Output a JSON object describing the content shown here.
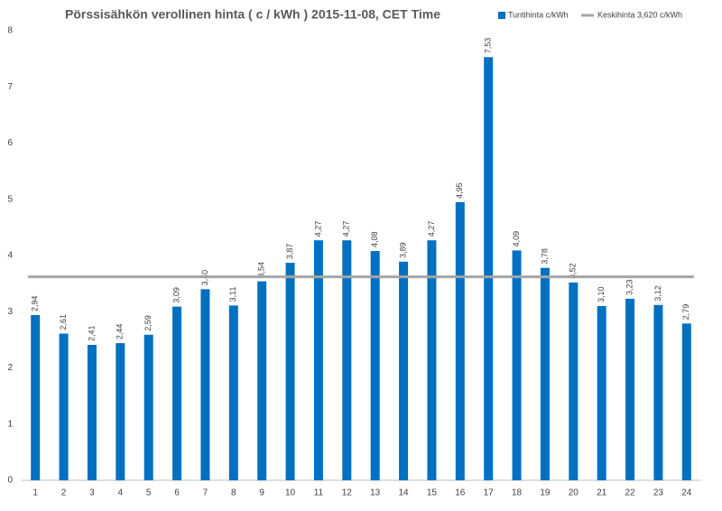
{
  "chart_data": {
    "type": "bar",
    "title": "Pörssisähkön verollinen hinta ( c / kWh ) 2015-11-08, CET Time",
    "categories": [
      "1",
      "2",
      "3",
      "4",
      "5",
      "6",
      "7",
      "8",
      "9",
      "10",
      "11",
      "12",
      "13",
      "14",
      "15",
      "16",
      "17",
      "18",
      "19",
      "20",
      "21",
      "22",
      "23",
      "24"
    ],
    "series": [
      {
        "name": "Tuntihinta c/kWh",
        "color": "#0070c0",
        "values": [
          2.94,
          2.61,
          2.41,
          2.44,
          2.59,
          3.09,
          3.4,
          3.11,
          3.54,
          3.87,
          4.27,
          4.27,
          4.08,
          3.89,
          4.27,
          4.95,
          7.53,
          4.09,
          3.78,
          3.52,
          3.1,
          3.23,
          3.12,
          2.79
        ],
        "value_labels": [
          "2,94",
          "2,61",
          "2,41",
          "2,44",
          "2,59",
          "3,09",
          "3,40",
          "3,11",
          "3,54",
          "3,87",
          "4,27",
          "4,27",
          "4,08",
          "3,89",
          "4,27",
          "4,95",
          "7,53",
          "4,09",
          "3,78",
          "3,52",
          "3,10",
          "3,23",
          "3,12",
          "2,79"
        ]
      },
      {
        "name": "Keskihinta 3,620 c/kWh",
        "color": "#a5a5a5",
        "type": "line",
        "values": [
          3.62,
          3.62,
          3.62,
          3.62,
          3.62,
          3.62,
          3.62,
          3.62,
          3.62,
          3.62,
          3.62,
          3.62,
          3.62,
          3.62,
          3.62,
          3.62,
          3.62,
          3.62,
          3.62,
          3.62,
          3.62,
          3.62,
          3.62,
          3.62
        ]
      }
    ],
    "ylim": [
      0,
      8
    ],
    "yticks": [
      0,
      1,
      2,
      3,
      4,
      5,
      6,
      7,
      8
    ],
    "grid": false,
    "legend": "top-right"
  }
}
